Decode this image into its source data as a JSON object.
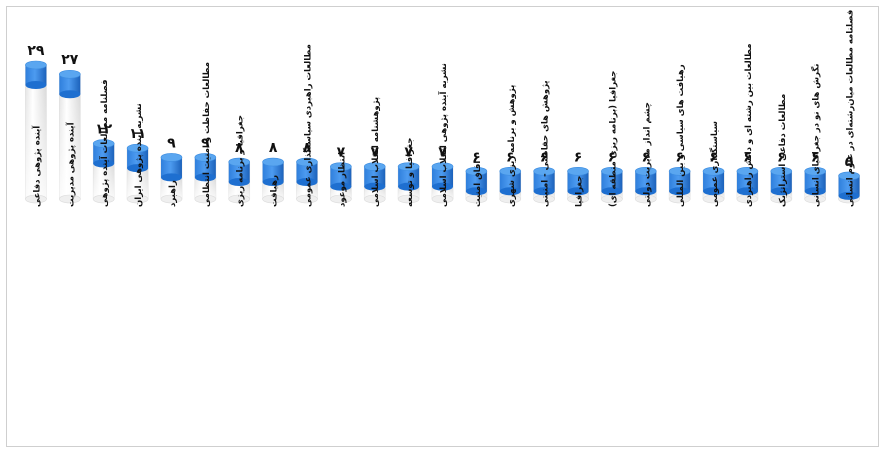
{
  "chart_data": {
    "type": "bar",
    "style": "3d-cylinder",
    "title": "",
    "xlabel": "",
    "ylabel": "",
    "ylim": [
      0,
      29
    ],
    "grid": false,
    "legend": "none",
    "colors": {
      "top": "#1e6fd0",
      "cap": "#5aa6f0",
      "body": "#f7f7f7",
      "body_edge": "#dcdcdc",
      "label": "#111111"
    },
    "categories": [
      "آینده پژوهی دفاعی",
      "آینده پژوهی مدیریت",
      "فصلنامه مطالعات آینده پژوهی",
      "نشریه آینده پژوهی ایران",
      "راهبرد",
      "مطالعات حفاظت و امنیت انتظامی",
      "جغرافیا و برنامه ریزی",
      "رهیافت",
      "مطالعات راهبردی سیاستگذاری عمومی",
      "انتظار موعود",
      "پژوهشنامه انقلاب اسلامی",
      "جغرافیا و توسعه",
      "نشریه آینده پژوهی انقلاب اسلامی",
      "افاق امنیت",
      "پژوهش و برنامه ریزی شهری",
      "پژوهش های حفاظتی - امنیتی",
      "جغرافیا",
      "جغرافیا (برنامه ریزی منطقه ای)",
      "چشم انداز مدیریت دولتی",
      "رهیافت های سیاسی و بین المللی",
      "سیاستگذاری عمومی",
      "مطالعات بین رشته ای و دانش راهبردی",
      "مطالعات دفاعی استراتژیک",
      "نگرش های نو در جغرافیای انسانی",
      "فصلنامه مطالعات میان‌رشته‌ای در علوم انسانی"
    ],
    "values": [
      29,
      27,
      12,
      11,
      9,
      9,
      8,
      8,
      8,
      7,
      7,
      7,
      7,
      6,
      6,
      6,
      6,
      6,
      6,
      6,
      6,
      6,
      6,
      6,
      5
    ],
    "value_labels": [
      "۲۹",
      "۲۷",
      "۱۲",
      "۱۱",
      "۹",
      "۹",
      "۸",
      "۸",
      "۸",
      "۷",
      "۷",
      "۷",
      "۷",
      "۶",
      "۶",
      "۶",
      "۶",
      "۶",
      "۶",
      "۶",
      "۶",
      "۶",
      "۶",
      "۶",
      "۵"
    ]
  }
}
